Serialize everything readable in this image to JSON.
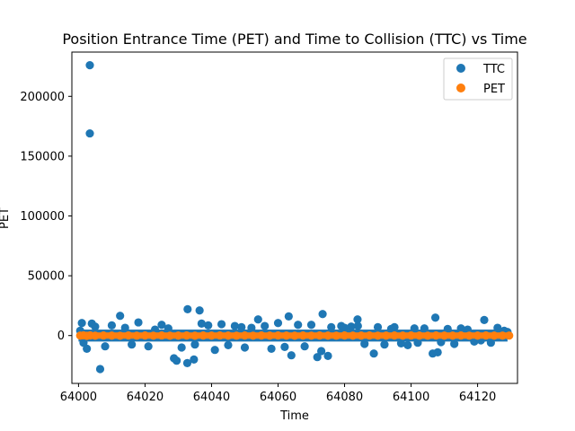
{
  "chart_data": {
    "type": "scatter",
    "title": "Position Entrance Time (PET) and Time to Collision (TTC) vs Time",
    "xlabel": "Time",
    "ylabel": "PET",
    "xlim": [
      63998,
      64132
    ],
    "ylim": [
      -40000,
      237000
    ],
    "xticks": [
      64000,
      64020,
      64040,
      64060,
      64080,
      64100,
      64120
    ],
    "yticks": [
      0,
      50000,
      100000,
      150000,
      200000
    ],
    "xtick_labels": [
      "64000",
      "64020",
      "64040",
      "64060",
      "64080",
      "64100",
      "64120"
    ],
    "ytick_labels": [
      "0",
      "50000",
      "100000",
      "150000",
      "200000"
    ],
    "legend_position": "top-right",
    "grid": false,
    "series": [
      {
        "name": "TTC",
        "color": "#1f77b4",
        "x": [
          64003.4,
          64003.4,
          64006.5,
          64032.8,
          64036.4,
          64032.7,
          64029.5,
          64028.7,
          64034.7,
          64073.4,
          64063.2,
          64064.0,
          64075.0,
          64071.8,
          64083.9,
          64088.8,
          64107.3,
          64106.5,
          64122.0,
          64108.0,
          64012.5,
          64001.0,
          64004.0,
          64002.5,
          64018.0,
          64043.0,
          64054.0,
          64050.0,
          64070.0,
          64095.0,
          64099.0,
          64126.0,
          64010.0,
          64025.0,
          64060.0,
          64079.0,
          64092.0,
          64115.0,
          64041.0,
          64047.0,
          64058.0,
          64066.0,
          64068.0,
          64082.0,
          64086.0,
          64101.0,
          64111.0,
          64119.0,
          64124.0,
          64128.0,
          64016.0,
          64021.0,
          64037.0,
          64056.0,
          64073.0,
          64090.0,
          64097.0,
          64104.0,
          64113.0,
          64000.5,
          64001.5,
          64005.0,
          64008.0,
          64014.0,
          64023.0,
          64027.0,
          64031.0,
          64035.0,
          64039.0,
          64045.0,
          64049.0,
          64052.0,
          64062.0,
          64076.0,
          64080.0,
          64084.0,
          64094.0,
          64102.0,
          64109.0,
          64117.0,
          64121.0,
          64129.0
        ],
        "y": [
          226000,
          169000,
          -28000,
          22000,
          21000,
          -23000,
          -21000,
          -19000,
          -20000,
          18000,
          16000,
          -16500,
          -17000,
          -18000,
          13500,
          -15000,
          15000,
          -15000,
          13000,
          -14000,
          16500,
          10500,
          10000,
          -11000,
          11000,
          9500,
          13500,
          -10000,
          9000,
          7000,
          -8000,
          6500,
          8500,
          9000,
          10500,
          8000,
          -7500,
          6000,
          -12000,
          8000,
          -11000,
          9000,
          -9000,
          7500,
          -7000,
          6000,
          5500,
          -5000,
          -6000,
          4000,
          -7500,
          -9000,
          10000,
          8000,
          -13000,
          7000,
          -6500,
          6000,
          -7000,
          4000,
          -6000,
          7500,
          -9000,
          6500,
          5000,
          6000,
          -10000,
          -7500,
          8500,
          -8000,
          7000,
          6500,
          -9500,
          7000,
          6500,
          8000,
          5500,
          -6000,
          -5500,
          5000,
          -4000,
          3000
        ]
      },
      {
        "name": "PET",
        "color": "#ff7f0e",
        "x": [
          64000.5,
          64001.5,
          64002.5,
          64003.5,
          64005.0,
          64007.5,
          64010.0,
          64012.5,
          64015.0,
          64017.5,
          64020.0,
          64022.5,
          64025.0,
          64027.5,
          64030.0,
          64032.5,
          64035.0,
          64037.5,
          64040.0,
          64042.5,
          64045.0,
          64047.5,
          64050.0,
          64052.5,
          64055.0,
          64057.5,
          64060.0,
          64062.5,
          64065.0,
          64067.5,
          64070.0,
          64072.5,
          64075.0,
          64077.5,
          64080.0,
          64082.5,
          64085.0,
          64087.5,
          64090.0,
          64092.5,
          64095.0,
          64097.5,
          64100.0,
          64102.5,
          64105.0,
          64107.5,
          64110.0,
          64112.5,
          64115.0,
          64117.5,
          64120.0,
          64122.5,
          64125.0,
          64127.5,
          64129.5
        ],
        "y": [
          0,
          200,
          -200,
          150,
          -100,
          100,
          0,
          -150,
          120,
          -80,
          60,
          -60,
          100,
          -100,
          0,
          80,
          -120,
          60,
          -40,
          100,
          0,
          -80,
          60,
          -60,
          40,
          -40,
          100,
          0,
          -100,
          60,
          -60,
          80,
          0,
          -80,
          40,
          0,
          -40,
          60,
          -60,
          0,
          40,
          -40,
          80,
          0,
          -80,
          40,
          0,
          -40,
          60,
          -60,
          0,
          40,
          -40,
          0,
          0
        ]
      }
    ]
  }
}
